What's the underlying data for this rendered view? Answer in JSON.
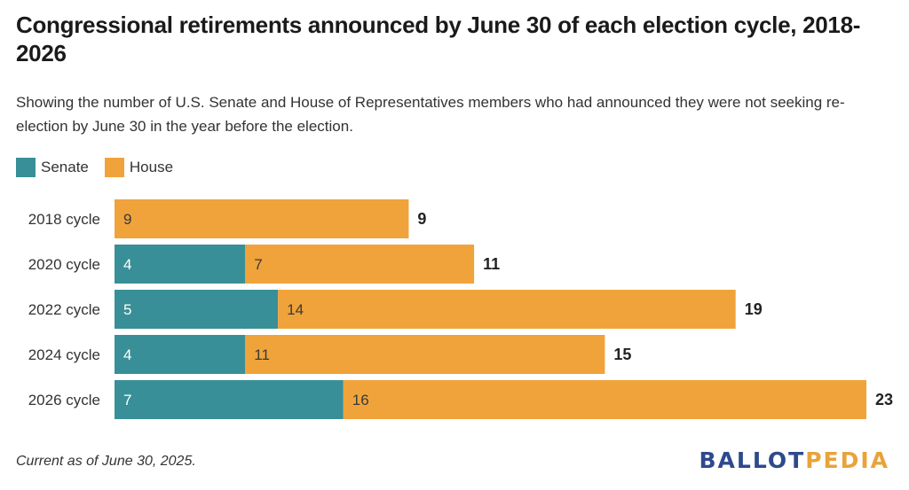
{
  "chart_data": {
    "type": "bar",
    "orientation": "horizontal",
    "stacked": true,
    "title": "Congressional retirements announced by June 30 of each election cycle, 2018-2026",
    "subtitle": "Showing the number of U.S. Senate and House of Representatives members who had announced they were not seeking re-election by June 30 in the year before the election.",
    "categories": [
      "2018 cycle",
      "2020 cycle",
      "2022 cycle",
      "2024 cycle",
      "2026 cycle"
    ],
    "series": [
      {
        "name": "Senate",
        "color": "#398f97",
        "values": [
          0,
          4,
          5,
          4,
          7
        ]
      },
      {
        "name": "House",
        "color": "#f0a33b",
        "values": [
          9,
          7,
          14,
          11,
          16
        ]
      }
    ],
    "totals": [
      9,
      11,
      19,
      15,
      23
    ],
    "xlim": [
      0,
      23
    ],
    "grid": false,
    "legend": "top-left"
  },
  "footnote": "Current as of June 30, 2025.",
  "logo": {
    "part1": "BALLOT",
    "part2": "PEDIA"
  }
}
